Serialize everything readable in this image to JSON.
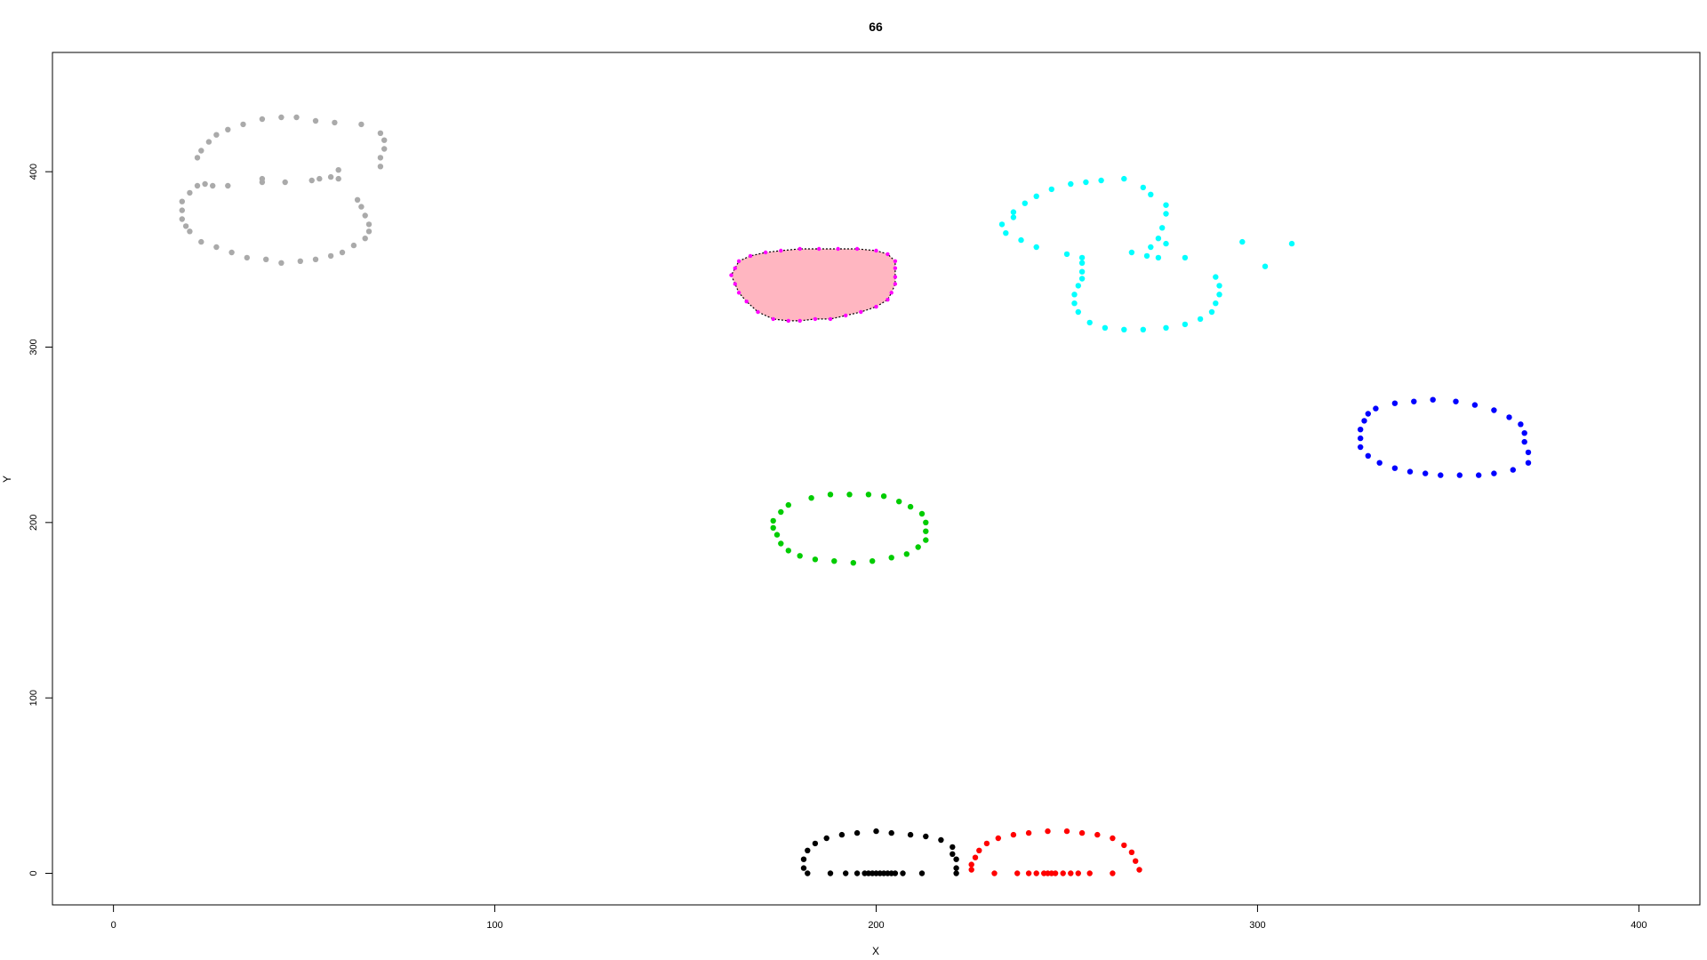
{
  "chart_data": {
    "type": "scatter",
    "title": "66",
    "xlabel": "X",
    "ylabel": "Y",
    "xlim": [
      -16,
      416
    ],
    "ylim": [
      -18,
      468
    ],
    "xticks": [
      0,
      100,
      200,
      300,
      400
    ],
    "yticks": [
      0,
      100,
      200,
      300,
      400
    ],
    "grid": false,
    "series": [
      {
        "color": "#aaaaaa",
        "points": [
          [
            22,
            408
          ],
          [
            23,
            412
          ],
          [
            25,
            417
          ],
          [
            27,
            421
          ],
          [
            30,
            424
          ],
          [
            34,
            427
          ],
          [
            39,
            430
          ],
          [
            44,
            431
          ],
          [
            48,
            431
          ],
          [
            53,
            429
          ],
          [
            58,
            428
          ],
          [
            65,
            427
          ],
          [
            70,
            422
          ],
          [
            71,
            418
          ],
          [
            71,
            413
          ],
          [
            70,
            408
          ],
          [
            70,
            403
          ],
          [
            59,
            401
          ],
          [
            57,
            397
          ],
          [
            54,
            396
          ],
          [
            52,
            395
          ],
          [
            45,
            394
          ],
          [
            39,
            394
          ],
          [
            39,
            396
          ],
          [
            30,
            392
          ],
          [
            26,
            392
          ],
          [
            24,
            393
          ],
          [
            22,
            392
          ],
          [
            20,
            388
          ],
          [
            18,
            383
          ],
          [
            18,
            378
          ],
          [
            18,
            373
          ],
          [
            19,
            369
          ],
          [
            20,
            366
          ],
          [
            23,
            360
          ],
          [
            27,
            357
          ],
          [
            31,
            354
          ],
          [
            35,
            351
          ],
          [
            40,
            350
          ],
          [
            44,
            348
          ],
          [
            49,
            349
          ],
          [
            53,
            350
          ],
          [
            57,
            352
          ],
          [
            60,
            354
          ],
          [
            63,
            358
          ],
          [
            66,
            362
          ],
          [
            67,
            366
          ],
          [
            67,
            370
          ],
          [
            66,
            375
          ],
          [
            65,
            380
          ],
          [
            64,
            384
          ],
          [
            59,
            396
          ]
        ]
      },
      {
        "color": "#ff00ff",
        "fill": "#ffb6c1",
        "points": [
          [
            180,
            315
          ],
          [
            184,
            316
          ],
          [
            188,
            316
          ],
          [
            192,
            318
          ],
          [
            196,
            320
          ],
          [
            200,
            323
          ],
          [
            203,
            327
          ],
          [
            204,
            331
          ],
          [
            205,
            336
          ],
          [
            205,
            340
          ],
          [
            205,
            345
          ],
          [
            205,
            349
          ],
          [
            203,
            353
          ],
          [
            200,
            355
          ],
          [
            195,
            356
          ],
          [
            190,
            356
          ],
          [
            185,
            356
          ],
          [
            180,
            356
          ],
          [
            175,
            355
          ],
          [
            171,
            354
          ],
          [
            167,
            352
          ],
          [
            164,
            349
          ],
          [
            163,
            345
          ],
          [
            162,
            341
          ],
          [
            163,
            336
          ],
          [
            164,
            331
          ],
          [
            166,
            326
          ],
          [
            169,
            320
          ],
          [
            173,
            316
          ],
          [
            177,
            315
          ]
        ]
      },
      {
        "color": "#00ffff",
        "points": [
          [
            236,
            377
          ],
          [
            239,
            382
          ],
          [
            242,
            386
          ],
          [
            246,
            390
          ],
          [
            251,
            393
          ],
          [
            255,
            394
          ],
          [
            259,
            395
          ],
          [
            265,
            396
          ],
          [
            270,
            391
          ],
          [
            272,
            387
          ],
          [
            276,
            381
          ],
          [
            276,
            376
          ],
          [
            275,
            368
          ],
          [
            274,
            362
          ],
          [
            272,
            357
          ],
          [
            271,
            352
          ],
          [
            267,
            354
          ],
          [
            274,
            351
          ],
          [
            281,
            351
          ],
          [
            276,
            359
          ],
          [
            254,
            343
          ],
          [
            254,
            339
          ],
          [
            253,
            335
          ],
          [
            252,
            330
          ],
          [
            252,
            325
          ],
          [
            253,
            320
          ],
          [
            256,
            314
          ],
          [
            260,
            311
          ],
          [
            265,
            310
          ],
          [
            270,
            310
          ],
          [
            276,
            311
          ],
          [
            281,
            313
          ],
          [
            285,
            316
          ],
          [
            288,
            320
          ],
          [
            289,
            325
          ],
          [
            290,
            330
          ],
          [
            290,
            335
          ],
          [
            289,
            340
          ],
          [
            250,
            353
          ],
          [
            254,
            351
          ],
          [
            254,
            348
          ],
          [
            242,
            357
          ],
          [
            238,
            361
          ],
          [
            234,
            365
          ],
          [
            233,
            370
          ],
          [
            236,
            374
          ],
          [
            296,
            360
          ],
          [
            302,
            346
          ],
          [
            309,
            359
          ]
        ]
      },
      {
        "color": "#0000ff",
        "points": [
          [
            331,
            265
          ],
          [
            336,
            268
          ],
          [
            341,
            269
          ],
          [
            346,
            270
          ],
          [
            352,
            269
          ],
          [
            357,
            267
          ],
          [
            362,
            264
          ],
          [
            366,
            260
          ],
          [
            369,
            256
          ],
          [
            370,
            251
          ],
          [
            370,
            246
          ],
          [
            371,
            240
          ],
          [
            371,
            234
          ],
          [
            367,
            230
          ],
          [
            362,
            228
          ],
          [
            358,
            227
          ],
          [
            353,
            227
          ],
          [
            348,
            227
          ],
          [
            344,
            228
          ],
          [
            340,
            229
          ],
          [
            336,
            231
          ],
          [
            332,
            234
          ],
          [
            329,
            238
          ],
          [
            327,
            243
          ],
          [
            327,
            248
          ],
          [
            327,
            253
          ],
          [
            328,
            258
          ],
          [
            329,
            262
          ]
        ]
      },
      {
        "color": "#00cc00",
        "points": [
          [
            183,
            214
          ],
          [
            188,
            216
          ],
          [
            193,
            216
          ],
          [
            198,
            216
          ],
          [
            202,
            215
          ],
          [
            206,
            212
          ],
          [
            209,
            209
          ],
          [
            212,
            205
          ],
          [
            213,
            200
          ],
          [
            213,
            195
          ],
          [
            213,
            190
          ],
          [
            211,
            186
          ],
          [
            208,
            182
          ],
          [
            204,
            180
          ],
          [
            199,
            178
          ],
          [
            194,
            177
          ],
          [
            189,
            178
          ],
          [
            184,
            179
          ],
          [
            180,
            181
          ],
          [
            177,
            184
          ],
          [
            175,
            188
          ],
          [
            174,
            193
          ],
          [
            173,
            197
          ],
          [
            173,
            201
          ],
          [
            175,
            206
          ],
          [
            177,
            210
          ]
        ]
      },
      {
        "color": "#000000",
        "points": [
          [
            182,
            0
          ],
          [
            181,
            3
          ],
          [
            181,
            8
          ],
          [
            182,
            13
          ],
          [
            184,
            17
          ],
          [
            187,
            20
          ],
          [
            191,
            22
          ],
          [
            195,
            23
          ],
          [
            200,
            24
          ],
          [
            204,
            23
          ],
          [
            209,
            22
          ],
          [
            213,
            21
          ],
          [
            217,
            19
          ],
          [
            220,
            15
          ],
          [
            220,
            11
          ],
          [
            221,
            8
          ],
          [
            221,
            3
          ],
          [
            221,
            0
          ],
          [
            212,
            0
          ],
          [
            207,
            0
          ],
          [
            205,
            0
          ],
          [
            204,
            0
          ],
          [
            203,
            0
          ],
          [
            202,
            0
          ],
          [
            201,
            0
          ],
          [
            200,
            0
          ],
          [
            199,
            0
          ],
          [
            198,
            0
          ],
          [
            197,
            0
          ],
          [
            195,
            0
          ],
          [
            192,
            0
          ],
          [
            188,
            0
          ]
        ]
      },
      {
        "color": "#ff0000",
        "points": [
          [
            225,
            2
          ],
          [
            225,
            5
          ],
          [
            226,
            9
          ],
          [
            227,
            13
          ],
          [
            229,
            17
          ],
          [
            232,
            20
          ],
          [
            236,
            22
          ],
          [
            240,
            23
          ],
          [
            245,
            24
          ],
          [
            250,
            24
          ],
          [
            254,
            23
          ],
          [
            258,
            22
          ],
          [
            262,
            20
          ],
          [
            265,
            16
          ],
          [
            267,
            12
          ],
          [
            268,
            7
          ],
          [
            269,
            2
          ],
          [
            262,
            0
          ],
          [
            256,
            0
          ],
          [
            253,
            0
          ],
          [
            251,
            0
          ],
          [
            249,
            0
          ],
          [
            247,
            0
          ],
          [
            246,
            0
          ],
          [
            245,
            0
          ],
          [
            244,
            0
          ],
          [
            242,
            0
          ],
          [
            240,
            0
          ],
          [
            237,
            0
          ],
          [
            231,
            0
          ]
        ]
      }
    ]
  }
}
